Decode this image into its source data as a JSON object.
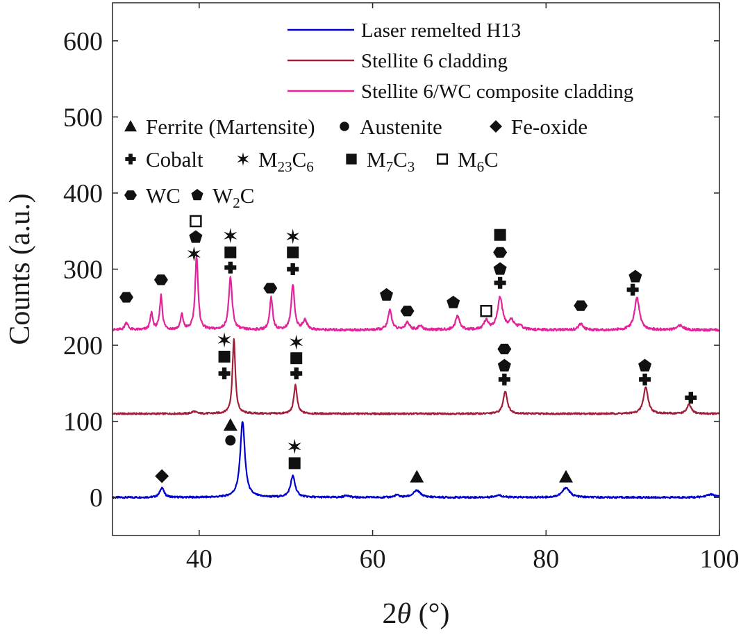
{
  "chart_data": {
    "type": "line",
    "title": "",
    "xlabel_prefix": "2",
    "xlabel_var": "θ",
    "xlabel_unit": " (°)",
    "ylabel": "Counts (a.u.)",
    "xlim": [
      30,
      100
    ],
    "ylim": [
      -50,
      650
    ],
    "xticks": [
      40,
      60,
      80,
      100
    ],
    "yticks": [
      0,
      100,
      200,
      300,
      400,
      500,
      600
    ],
    "grid": false,
    "legend_position": "top-right",
    "series": [
      {
        "name": "Laser remelted H13",
        "color": "#0000c8",
        "baseline": 0,
        "peaks": [
          {
            "x": 35.7,
            "h": 13,
            "w": 0.28
          },
          {
            "x": 45.0,
            "h": 100,
            "w": 0.32
          },
          {
            "x": 50.8,
            "h": 28,
            "w": 0.32
          },
          {
            "x": 57.0,
            "h": 3,
            "w": 0.3
          },
          {
            "x": 62.8,
            "h": 3,
            "w": 0.3
          },
          {
            "x": 65.1,
            "h": 9,
            "w": 0.5
          },
          {
            "x": 74.5,
            "h": 3,
            "w": 0.5
          },
          {
            "x": 82.3,
            "h": 13,
            "w": 0.5
          },
          {
            "x": 99.0,
            "h": 4,
            "w": 0.6
          }
        ]
      },
      {
        "name": "Stellite 6 cladding",
        "color": "#a0203a",
        "baseline": 110,
        "peaks": [
          {
            "x": 39.4,
            "h": 3,
            "w": 0.3
          },
          {
            "x": 44.0,
            "h": 98,
            "w": 0.2
          },
          {
            "x": 51.1,
            "h": 38,
            "w": 0.22
          },
          {
            "x": 75.3,
            "h": 30,
            "w": 0.28
          },
          {
            "x": 91.5,
            "h": 35,
            "w": 0.32
          },
          {
            "x": 96.5,
            "h": 12,
            "w": 0.3
          }
        ]
      },
      {
        "name": "Stellite 6/WC composite cladding",
        "color": "#e2239a",
        "baseline": 220,
        "peaks": [
          {
            "x": 31.6,
            "h": 10,
            "w": 0.22
          },
          {
            "x": 34.5,
            "h": 22,
            "w": 0.18
          },
          {
            "x": 35.6,
            "h": 45,
            "w": 0.18
          },
          {
            "x": 38.0,
            "h": 20,
            "w": 0.18
          },
          {
            "x": 39.7,
            "h": 98,
            "w": 0.2
          },
          {
            "x": 43.6,
            "h": 68,
            "w": 0.24
          },
          {
            "x": 48.3,
            "h": 42,
            "w": 0.2
          },
          {
            "x": 50.8,
            "h": 60,
            "w": 0.22
          },
          {
            "x": 52.2,
            "h": 12,
            "w": 0.3
          },
          {
            "x": 62.0,
            "h": 26,
            "w": 0.26
          },
          {
            "x": 64.0,
            "h": 10,
            "w": 0.3
          },
          {
            "x": 65.5,
            "h": 5,
            "w": 0.3
          },
          {
            "x": 69.8,
            "h": 18,
            "w": 0.3
          },
          {
            "x": 73.1,
            "h": 12,
            "w": 0.3
          },
          {
            "x": 74.7,
            "h": 42,
            "w": 0.35
          },
          {
            "x": 76.0,
            "h": 12,
            "w": 0.35
          },
          {
            "x": 77.0,
            "h": 5,
            "w": 0.3
          },
          {
            "x": 84.0,
            "h": 8,
            "w": 0.3
          },
          {
            "x": 90.5,
            "h": 42,
            "w": 0.35
          },
          {
            "x": 95.5,
            "h": 6,
            "w": 0.4
          }
        ]
      }
    ],
    "phase_key": [
      {
        "row": 0,
        "items": [
          {
            "symbol": "triangle",
            "label": "Ferrite (Martensite)"
          },
          {
            "symbol": "circle",
            "label": "Austenite"
          },
          {
            "symbol": "diamond",
            "label": "Fe-oxide"
          }
        ]
      },
      {
        "row": 1,
        "items": [
          {
            "symbol": "plus",
            "label": "Cobalt"
          },
          {
            "symbol": "star6",
            "label": "M",
            "sub": "23",
            "label2": "C",
            "sub2": "6"
          },
          {
            "symbol": "square",
            "label": "M",
            "sub": "7",
            "label2": "C",
            "sub2": "3"
          },
          {
            "symbol": "square-open",
            "label": "M",
            "sub": "6",
            "label2": "C",
            "sub2": ""
          }
        ]
      },
      {
        "row": 2,
        "items": [
          {
            "symbol": "hexagon",
            "label": "WC"
          },
          {
            "symbol": "pentagon",
            "label": "W",
            "sub": "2",
            "label2": "C",
            "sub2": ""
          }
        ]
      }
    ],
    "markers": [
      {
        "symbol": "diamond",
        "x": 35.7,
        "y": 28
      },
      {
        "symbol": "circle",
        "x": 43.6,
        "y": 75
      },
      {
        "symbol": "triangle",
        "x": 43.6,
        "y": 95
      },
      {
        "symbol": "square",
        "x": 51.0,
        "y": 45
      },
      {
        "symbol": "star6",
        "x": 51.0,
        "y": 67
      },
      {
        "symbol": "triangle",
        "x": 65.1,
        "y": 27
      },
      {
        "symbol": "triangle",
        "x": 82.3,
        "y": 27
      },
      {
        "symbol": "plus",
        "x": 42.9,
        "y": 163
      },
      {
        "symbol": "square",
        "x": 42.9,
        "y": 185
      },
      {
        "symbol": "star6",
        "x": 42.9,
        "y": 207
      },
      {
        "symbol": "plus",
        "x": 51.2,
        "y": 163
      },
      {
        "symbol": "square",
        "x": 51.2,
        "y": 183
      },
      {
        "symbol": "star6",
        "x": 51.2,
        "y": 204
      },
      {
        "symbol": "plus",
        "x": 75.2,
        "y": 155
      },
      {
        "symbol": "pentagon",
        "x": 75.2,
        "y": 173
      },
      {
        "symbol": "hexagon",
        "x": 75.2,
        "y": 195
      },
      {
        "symbol": "plus",
        "x": 91.4,
        "y": 155
      },
      {
        "symbol": "pentagon",
        "x": 91.4,
        "y": 173
      },
      {
        "symbol": "plus",
        "x": 96.7,
        "y": 131
      },
      {
        "symbol": "hexagon",
        "x": 31.6,
        "y": 263
      },
      {
        "symbol": "hexagon",
        "x": 35.6,
        "y": 286
      },
      {
        "symbol": "star6",
        "x": 39.4,
        "y": 320
      },
      {
        "symbol": "pentagon",
        "x": 39.6,
        "y": 342
      },
      {
        "symbol": "square-open",
        "x": 39.6,
        "y": 363
      },
      {
        "symbol": "plus",
        "x": 43.6,
        "y": 302
      },
      {
        "symbol": "square",
        "x": 43.6,
        "y": 322
      },
      {
        "symbol": "star6",
        "x": 43.6,
        "y": 344
      },
      {
        "symbol": "hexagon",
        "x": 48.2,
        "y": 275
      },
      {
        "symbol": "plus",
        "x": 50.8,
        "y": 300
      },
      {
        "symbol": "square",
        "x": 50.8,
        "y": 322
      },
      {
        "symbol": "star6",
        "x": 50.8,
        "y": 343
      },
      {
        "symbol": "pentagon",
        "x": 61.6,
        "y": 266
      },
      {
        "symbol": "hexagon",
        "x": 64.0,
        "y": 245
      },
      {
        "symbol": "pentagon",
        "x": 69.3,
        "y": 256
      },
      {
        "symbol": "square-open",
        "x": 73.1,
        "y": 245
      },
      {
        "symbol": "plus",
        "x": 74.7,
        "y": 282
      },
      {
        "symbol": "pentagon",
        "x": 74.7,
        "y": 300
      },
      {
        "symbol": "hexagon",
        "x": 74.7,
        "y": 322
      },
      {
        "symbol": "square",
        "x": 74.7,
        "y": 345
      },
      {
        "symbol": "hexagon",
        "x": 84.0,
        "y": 252
      },
      {
        "symbol": "plus",
        "x": 90.0,
        "y": 273
      },
      {
        "symbol": "pentagon",
        "x": 90.3,
        "y": 290
      }
    ]
  }
}
